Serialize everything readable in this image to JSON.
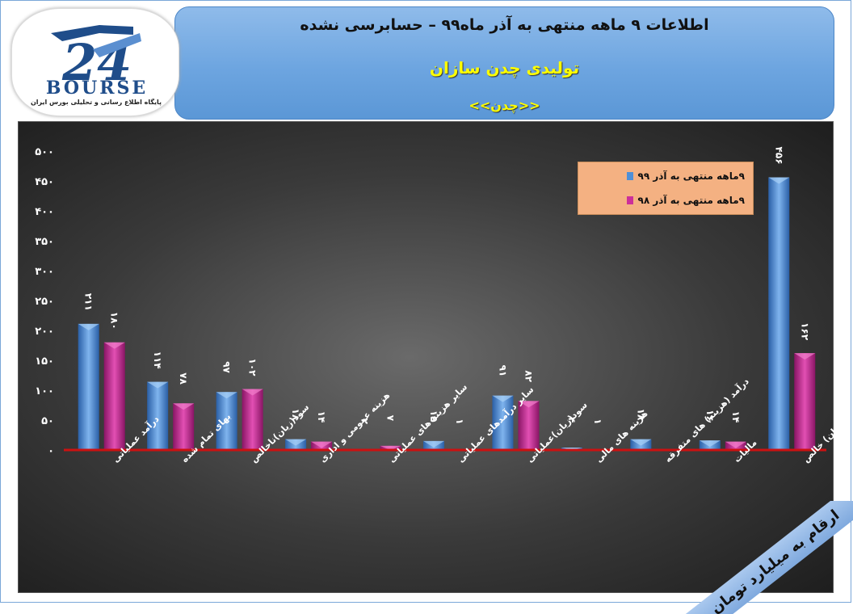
{
  "header": {
    "title": "اطلاعات ۹ ماهه منتهی به آذر ماه۹۹ – حسابرسی نشده",
    "company": "تولیدی چدن سازان",
    "symbol": "<<چدن>>"
  },
  "logo": {
    "word": "BOURSE",
    "caption": "پایگاه اطلاع رسانی و تحلیلی بورس ایران"
  },
  "units_note": "ارقام به میلیارد تومان",
  "colors": {
    "series_1": "#4f8fd6",
    "series_2": "#cc2f9a",
    "baseline": "#cc1111"
  },
  "chart_data": {
    "type": "bar",
    "categories": [
      "درآمد عملیاتی",
      "بهای تمام شده",
      "سود(زیان)ناخالص",
      "هزینه عمومی و اداری",
      "سایر هزینه های عملیاتی",
      "سایر درآمدهای عملیاتی",
      "سود(زیان)عملیاتی",
      "هزینه های مالی",
      "درآمد (هزینه) های متفرقه",
      "مالیات",
      "سود(زیان) خالص"
    ],
    "series": [
      {
        "name": "۹ماهه منتهی به آذر ۹۹",
        "values": [
          211,
          114,
          97,
          18,
          2,
          15,
          91,
          4,
          18,
          16,
          456
        ]
      },
      {
        "name": "۹ماهه منتهی به آذر ۹۸",
        "values": [
          180,
          78,
          102,
          14,
          7,
          1,
          82,
          1,
          0,
          14,
          162
        ]
      }
    ],
    "data_labels": [
      [
        "۲۱۱",
        "۱۱۴",
        "۹۷",
        "۱۸",
        "۲",
        "۱۵",
        "۹۱",
        "۴",
        "۱۸",
        "۱۶",
        "۴۵۶"
      ],
      [
        "۱۸۰",
        "۷۸",
        "۱۰۲",
        "۱۴",
        "۷",
        "۱",
        "۸۲",
        "۱",
        "",
        "۱۴",
        "۱۶۲"
      ]
    ],
    "yticks": [
      0,
      50,
      100,
      150,
      200,
      250,
      300,
      350,
      400,
      450,
      500
    ],
    "ytick_labels": [
      "۰",
      "۵۰",
      "۱۰۰",
      "۱۵۰",
      "۲۰۰",
      "۲۵۰",
      "۳۰۰",
      "۳۵۰",
      "۴۰۰",
      "۴۵۰",
      "۵۰۰"
    ],
    "ylim": [
      0,
      500
    ],
    "grid": false,
    "legend_position": "top-right"
  }
}
